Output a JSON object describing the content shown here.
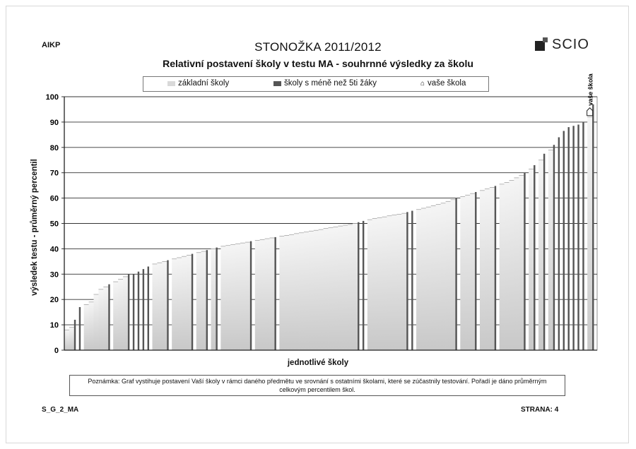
{
  "header": {
    "code": "AIKP",
    "title": "STONOŽKA 2011/2012",
    "logo_text": "SCIO"
  },
  "footer": {
    "left": "S_G_2_MA",
    "right": "STRANA: 4"
  },
  "note": {
    "text": "Poznámka: Graf vystihuje postavení Vaší školy v rámci daného předmětu ve srovnání s ostatními školami, které se zúčastnily testování. Pořadí je dáno průměrným celkovým percentilem škol."
  },
  "colors": {
    "bar_light": "#d9d9d9",
    "bar_dark": "#555555",
    "grid": "#333333"
  },
  "chart_data": {
    "type": "bar",
    "title": "Relativní postavení školy v testu MA - souhrnné výsledky za školu",
    "xlabel": "jednotlivé školy",
    "ylabel": "výsledek testu - průměrný percentil",
    "ylim": [
      0,
      100
    ],
    "yticks": [
      0,
      10,
      20,
      30,
      40,
      50,
      60,
      70,
      80,
      90,
      100
    ],
    "grid": true,
    "legend_position": "top",
    "legend": [
      "základní školy",
      "školy s méně než 5ti žáky",
      "vaše škola"
    ],
    "values": [
      8,
      9,
      12,
      17,
      18,
      19,
      22,
      24,
      25,
      26,
      27,
      28,
      29,
      30,
      30,
      31,
      32,
      33,
      34,
      34.5,
      35,
      35.5,
      36,
      36.5,
      37,
      37.5,
      38,
      38.5,
      39,
      39.5,
      40,
      40.5,
      41,
      41.3,
      41.6,
      42,
      42.3,
      42.6,
      43,
      43.3,
      43.6,
      44,
      44.3,
      44.6,
      45,
      45.3,
      45.6,
      46,
      46.3,
      46.6,
      47,
      47.3,
      47.6,
      48,
      48.3,
      48.6,
      49,
      49.3,
      49.6,
      50,
      50.5,
      51,
      51.5,
      52,
      52.3,
      52.6,
      53,
      53.3,
      53.6,
      54,
      54.5,
      55,
      55.5,
      56,
      56.5,
      57,
      57.5,
      58,
      58.7,
      59.4,
      60,
      60.6,
      61.2,
      61.8,
      62.4,
      63,
      63.6,
      64.2,
      64.8,
      65.5,
      66.2,
      67,
      68,
      69,
      70,
      71.5,
      73,
      75,
      77.5,
      79,
      81,
      84,
      86.5,
      88,
      88.5,
      89,
      90,
      92,
      97
    ],
    "small_school_indices": [
      2,
      3,
      9,
      13,
      14,
      15,
      16,
      17,
      21,
      26,
      29,
      31,
      38,
      43,
      60,
      61,
      70,
      71,
      80,
      84,
      88,
      94,
      96,
      98,
      100,
      101,
      102,
      103,
      104,
      105,
      106,
      108
    ],
    "your_school_index": 107,
    "your_school_label": "vaše škola"
  }
}
